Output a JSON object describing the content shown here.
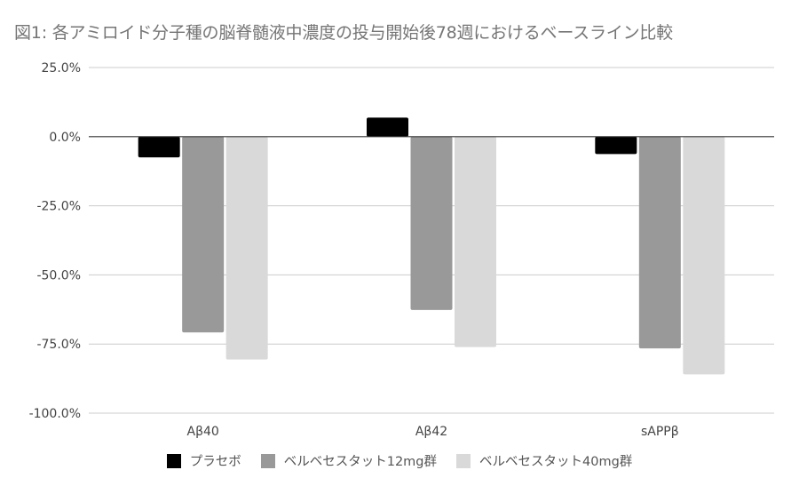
{
  "chart_data": {
    "type": "bar",
    "title": "図1: 各アミロイド分子種の脳脊髄液中濃度の投与開始後78週におけるベースライン比較",
    "categories": [
      "Aβ40",
      "Aβ42",
      "sAPPβ"
    ],
    "series": [
      {
        "name": "プラセボ",
        "color": "#000000",
        "values": [
          -7.5,
          6.9,
          -6.3
        ]
      },
      {
        "name": "ベルベセスタット12mg群",
        "color": "#999999",
        "values": [
          -70.8,
          -62.7,
          -76.6
        ]
      },
      {
        "name": "ベルベセスタット40mg群",
        "color": "#d9d9d9",
        "values": [
          -80.6,
          -76.1,
          -86.0
        ]
      }
    ],
    "ylim": [
      -100,
      25
    ],
    "yticks": [
      "25.0%",
      "0.0%",
      "-25.0%",
      "-50.0%",
      "-75.0%",
      "-100.0%"
    ],
    "ytick_values": [
      25,
      0,
      -25,
      -50,
      -75,
      -100
    ],
    "grid": true,
    "legend_position": "bottom"
  }
}
